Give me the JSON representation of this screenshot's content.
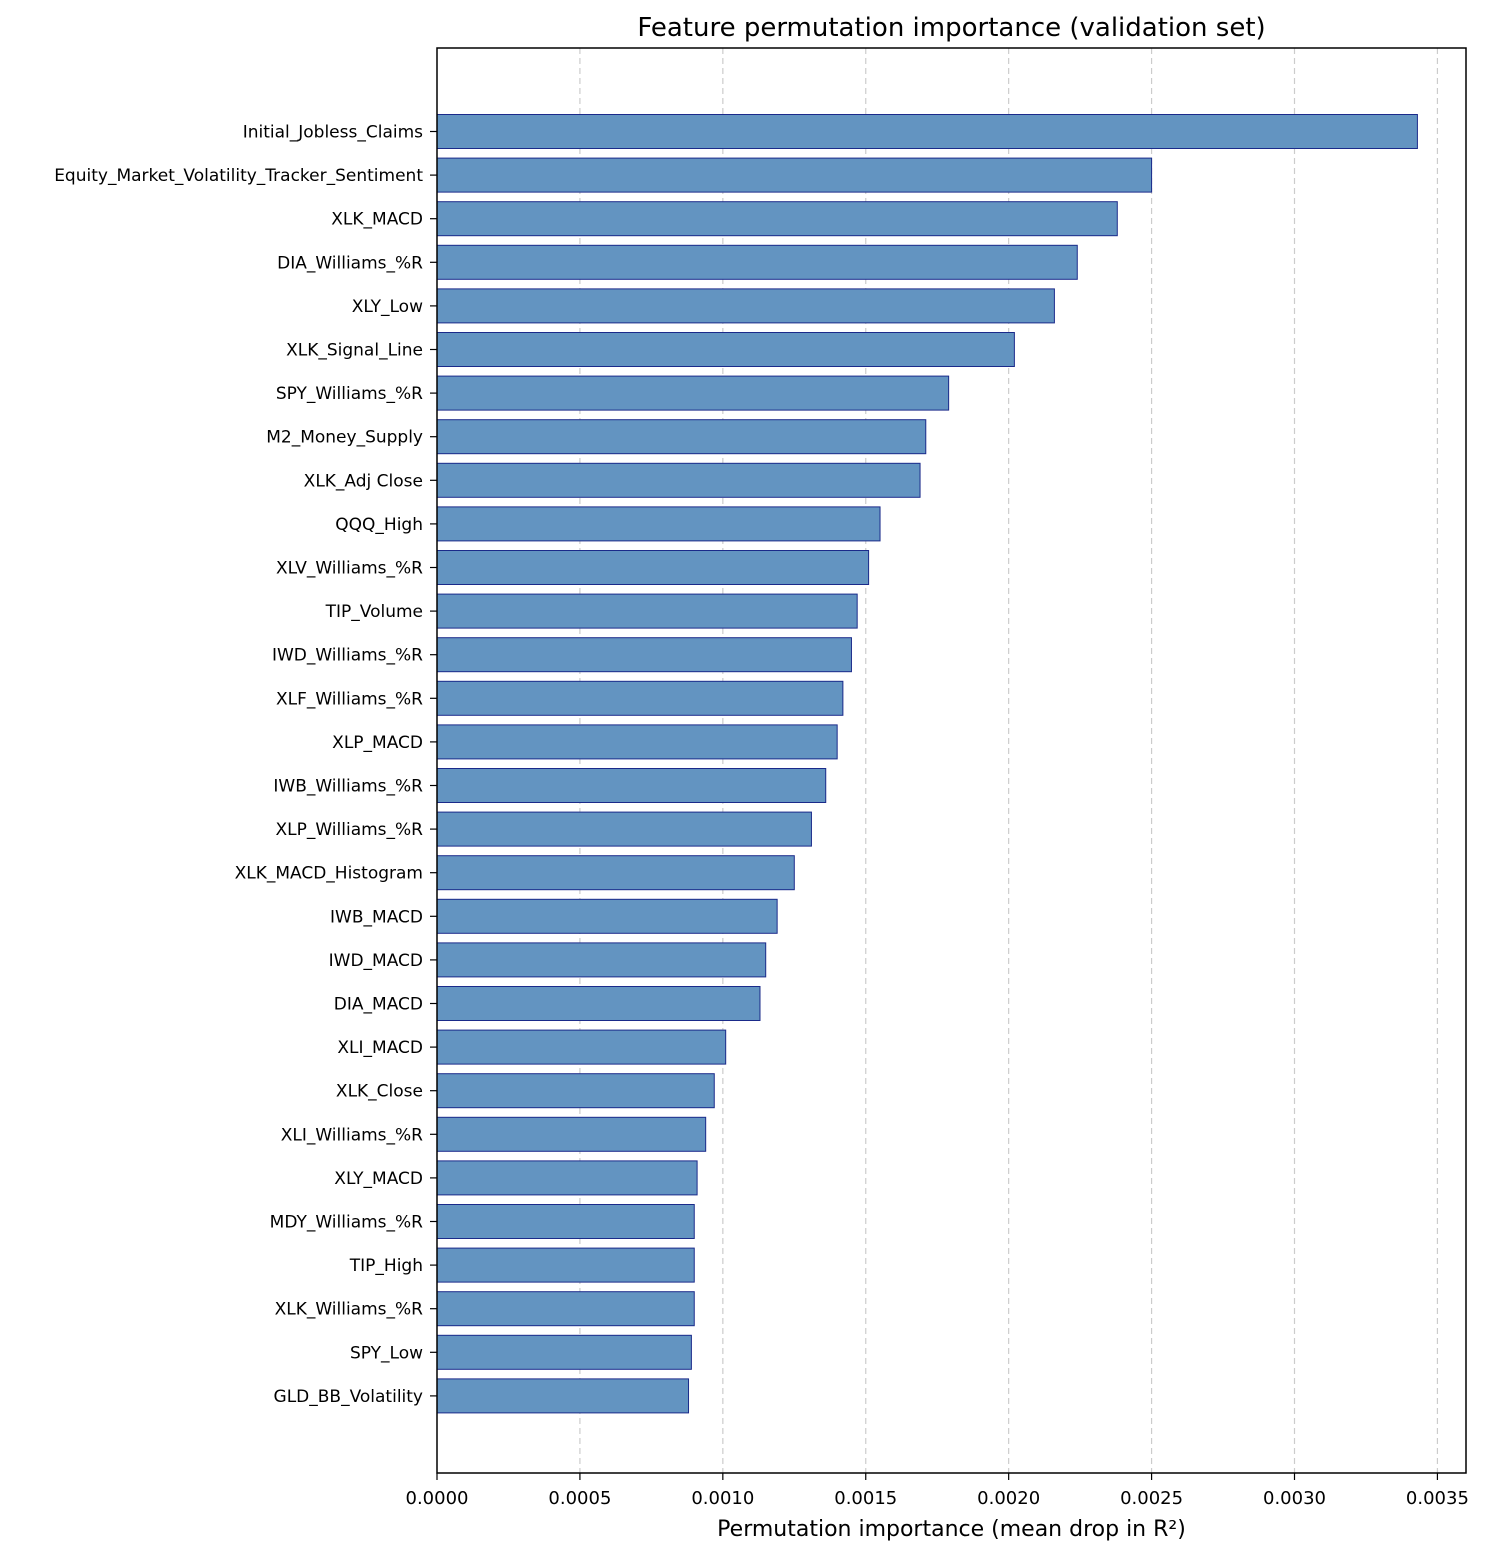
{
  "chart_data": {
    "type": "bar",
    "orientation": "horizontal",
    "title": "Feature permutation importance (validation set)",
    "xlabel": "Permutation importance (mean drop in R²)",
    "ylabel": "",
    "xlim": [
      0,
      0.0036
    ],
    "xticks": [
      0.0,
      0.0005,
      0.001,
      0.0015,
      0.002,
      0.0025,
      0.003,
      0.0035
    ],
    "xtick_labels": [
      "0.0000",
      "0.0005",
      "0.0010",
      "0.0015",
      "0.0020",
      "0.0025",
      "0.0030",
      "0.0035"
    ],
    "grid": {
      "x": true,
      "y": false,
      "style": "dashed"
    },
    "colors": {
      "bar_fill": "#6394c1",
      "bar_edge": "#1a2a8a",
      "grid": "#cccccc"
    },
    "categories": [
      "Initial_Jobless_Claims",
      "Equity_Market_Volatility_Tracker_Sentiment",
      "XLK_MACD",
      "DIA_Williams_%R",
      "XLY_Low",
      "XLK_Signal_Line",
      "SPY_Williams_%R",
      "M2_Money_Supply",
      "XLK_Adj Close",
      "QQQ_High",
      "XLV_Williams_%R",
      "TIP_Volume",
      "IWD_Williams_%R",
      "XLF_Williams_%R",
      "XLP_MACD",
      "IWB_Williams_%R",
      "XLP_Williams_%R",
      "XLK_MACD_Histogram",
      "IWB_MACD",
      "IWD_MACD",
      "DIA_MACD",
      "XLI_MACD",
      "XLK_Close",
      "XLI_Williams_%R",
      "XLY_MACD",
      "MDY_Williams_%R",
      "TIP_High",
      "XLK_Williams_%R",
      "SPY_Low",
      "GLD_BB_Volatility"
    ],
    "values": [
      0.00343,
      0.0025,
      0.00238,
      0.00224,
      0.00216,
      0.00202,
      0.00179,
      0.00171,
      0.00169,
      0.00155,
      0.00151,
      0.00147,
      0.00145,
      0.00142,
      0.0014,
      0.00136,
      0.00131,
      0.00125,
      0.00119,
      0.00115,
      0.00113,
      0.00101,
      0.00097,
      0.00094,
      0.00091,
      0.0009,
      0.0009,
      0.0009,
      0.00089,
      0.00088
    ]
  }
}
